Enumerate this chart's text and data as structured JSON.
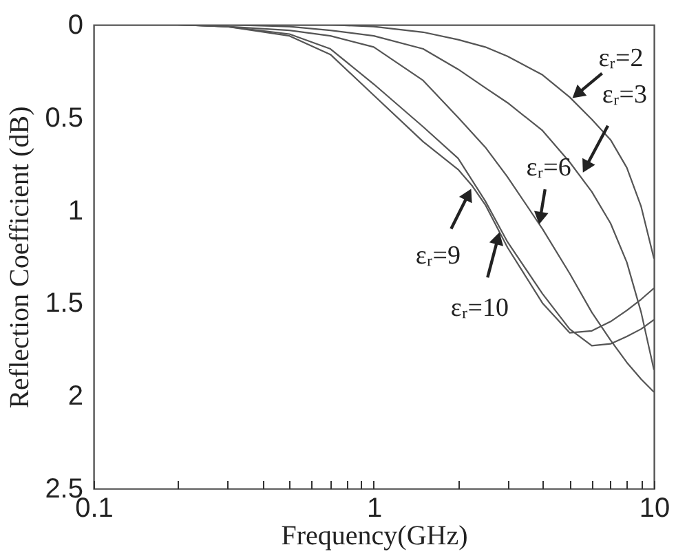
{
  "chart_data": {
    "type": "line",
    "xlabel": "Frequency(GHz)",
    "ylabel": "Reflection Coefficient (dB)",
    "log": "x",
    "grid": false,
    "marker": "none",
    "line_style": "solid",
    "xlim": [
      0.1,
      10
    ],
    "ylim": [
      2.5,
      0
    ],
    "xticks": [
      0.1,
      {
        "value": 0.2,
        "label": null
      },
      {
        "value": 0.3,
        "label": null
      },
      {
        "value": 0.4,
        "label": null
      },
      {
        "value": 0.5,
        "label": null
      },
      {
        "value": 0.6,
        "label": null
      },
      {
        "value": 0.7,
        "label": null
      },
      {
        "value": 0.8,
        "label": null
      },
      {
        "value": 0.9,
        "label": null
      },
      1,
      {
        "value": 2,
        "label": null
      },
      {
        "value": 3,
        "label": null
      },
      {
        "value": 4,
        "label": null
      },
      {
        "value": 5,
        "label": null
      },
      {
        "value": 6,
        "label": null
      },
      {
        "value": 7,
        "label": null
      },
      {
        "value": 8,
        "label": null
      },
      {
        "value": 9,
        "label": null
      },
      10
    ],
    "yticks": [
      0,
      0.5,
      1,
      1.5,
      2,
      2.5
    ],
    "x": [
      0.1,
      0.2,
      0.3,
      0.5,
      0.7,
      1,
      1.5,
      2,
      2.5,
      3,
      4,
      5,
      6,
      7,
      8,
      9,
      10
    ],
    "series": [
      {
        "color": "#555555",
        "values": [
          0,
          0,
          0,
          0,
          0,
          0.01,
          0.04,
          0.08,
          0.12,
          0.17,
          0.27,
          0.39,
          0.51,
          0.62,
          0.77,
          0.98,
          1.26
        ]
      },
      {
        "color": "#555555",
        "values": [
          0,
          0,
          0,
          0.01,
          0.03,
          0.06,
          0.13,
          0.24,
          0.34,
          0.42,
          0.57,
          0.74,
          0.9,
          1.07,
          1.28,
          1.55,
          1.86
        ]
      },
      {
        "color": "#555555",
        "values": [
          0,
          0,
          0.01,
          0.03,
          0.06,
          0.12,
          0.3,
          0.5,
          0.66,
          0.82,
          1.1,
          1.34,
          1.55,
          1.7,
          1.82,
          1.91,
          1.98
        ]
      },
      {
        "color": "#555555",
        "x": [
          0.1,
          0.2,
          0.3,
          0.5,
          0.7,
          1,
          1.5,
          2,
          2.25,
          2.5,
          3,
          4,
          5,
          6,
          7,
          8,
          9,
          10
        ],
        "values": [
          0,
          0,
          0.01,
          0.06,
          0.16,
          0.38,
          0.63,
          0.78,
          0.87,
          0.97,
          1.2,
          1.5,
          1.66,
          1.65,
          1.6,
          1.54,
          1.48,
          1.42
        ]
      },
      {
        "color": "#555555",
        "x": [
          0.1,
          0.2,
          0.3,
          0.5,
          0.7,
          1,
          1.5,
          2,
          2.5,
          2.83,
          3,
          4,
          5,
          6,
          7,
          8,
          9,
          10
        ],
        "values": [
          0,
          0,
          0.01,
          0.05,
          0.13,
          0.32,
          0.55,
          0.72,
          0.95,
          1.1,
          1.17,
          1.45,
          1.64,
          1.73,
          1.72,
          1.68,
          1.64,
          1.59
        ]
      }
    ],
    "annotations": [
      {
        "text": "εᵣ=2",
        "x": 5.07,
        "y": 0.4
      },
      {
        "text": "εᵣ=3",
        "x": 5.47,
        "y": 0.82
      },
      {
        "text": "εᵣ=6",
        "x": 3.89,
        "y": 1.08
      },
      {
        "text": "εᵣ=9",
        "x": 2.25,
        "y": 0.87
      },
      {
        "text": "εᵣ=10",
        "x": 2.83,
        "y": 1.1
      }
    ]
  }
}
